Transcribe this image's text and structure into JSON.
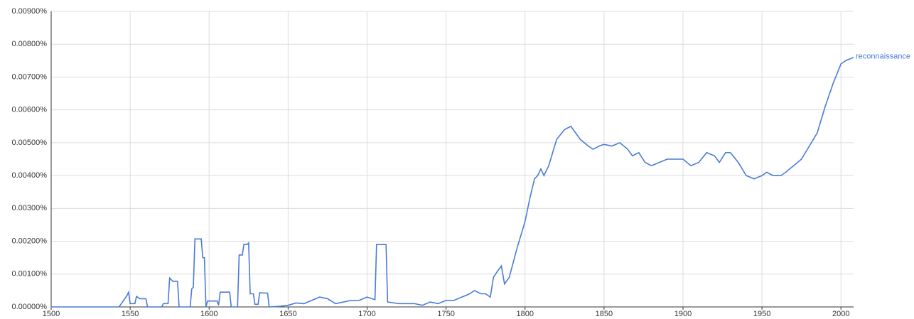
{
  "chart_data": {
    "type": "line",
    "x": [
      1500,
      1543,
      1548,
      1549,
      1550,
      1553,
      1554,
      1556,
      1560,
      1561,
      1570,
      1571,
      1574,
      1575,
      1577,
      1580,
      1581,
      1588,
      1589,
      1590,
      1591,
      1595,
      1596,
      1597,
      1598,
      1599,
      1605,
      1606,
      1607,
      1613,
      1614,
      1618,
      1619,
      1621,
      1622,
      1624,
      1625,
      1626,
      1628,
      1629,
      1631,
      1632,
      1637,
      1638,
      1645,
      1650,
      1655,
      1660,
      1665,
      1670,
      1675,
      1680,
      1685,
      1690,
      1695,
      1700,
      1705,
      1706,
      1712,
      1713,
      1720,
      1730,
      1735,
      1740,
      1745,
      1750,
      1755,
      1760,
      1765,
      1768,
      1772,
      1775,
      1778,
      1780,
      1782,
      1785,
      1787,
      1790,
      1795,
      1800,
      1803,
      1806,
      1808,
      1810,
      1812,
      1815,
      1820,
      1825,
      1829,
      1832,
      1835,
      1840,
      1843,
      1847,
      1850,
      1855,
      1860,
      1865,
      1868,
      1872,
      1876,
      1880,
      1885,
      1890,
      1895,
      1900,
      1905,
      1910,
      1915,
      1920,
      1923,
      1927,
      1930,
      1935,
      1940,
      1945,
      1950,
      1953,
      1957,
      1962,
      1965,
      1970,
      1975,
      1980,
      1985,
      1990,
      1995,
      2000,
      2003,
      2008
    ],
    "series": [
      {
        "name": "reconnaissance",
        "color": "#4a7bd6",
        "values": [
          0,
          0,
          0.00035,
          0.00045,
          0.0001,
          0.0001,
          0.00032,
          0.00025,
          0.00025,
          0,
          0,
          0.0001,
          0.0001,
          0.00088,
          0.00078,
          0.00078,
          0,
          0,
          0.00055,
          0.0006,
          0.00207,
          0.00207,
          0.0015,
          0.0015,
          0,
          0.00018,
          0.00018,
          5e-05,
          0.00045,
          0.00045,
          0,
          0,
          0.00158,
          0.00158,
          0.0019,
          0.0019,
          0.00195,
          0.0004,
          0.0004,
          8e-05,
          8e-05,
          0.00043,
          0.00042,
          0,
          2e-05,
          5e-05,
          0.00012,
          0.0001,
          0.0002,
          0.0003,
          0.00025,
          0.0001,
          0.00015,
          0.0002,
          0.0002,
          0.0003,
          0.00022,
          0.0019,
          0.0019,
          0.00015,
          0.0001,
          0.0001,
          5e-05,
          0.00015,
          0.0001,
          0.0002,
          0.0002,
          0.0003,
          0.0004,
          0.0005,
          0.0004,
          0.0004,
          0.0003,
          0.0009,
          0.00105,
          0.00125,
          0.0007,
          0.0009,
          0.0018,
          0.0026,
          0.0033,
          0.0039,
          0.004,
          0.0042,
          0.004,
          0.0043,
          0.0051,
          0.0054,
          0.0055,
          0.0053,
          0.0051,
          0.0049,
          0.0048,
          0.0049,
          0.00495,
          0.0049,
          0.005,
          0.0048,
          0.0046,
          0.0047,
          0.0044,
          0.0043,
          0.0044,
          0.0045,
          0.0045,
          0.0045,
          0.0043,
          0.0044,
          0.0047,
          0.0046,
          0.0044,
          0.0047,
          0.0047,
          0.0044,
          0.004,
          0.0039,
          0.004,
          0.0041,
          0.004,
          0.004,
          0.0041,
          0.0043,
          0.0045,
          0.0049,
          0.0053,
          0.0061,
          0.0068,
          0.0074,
          0.0075,
          0.0076
        ]
      }
    ],
    "xlim": [
      1500,
      2008
    ],
    "xticks": [
      1500,
      1550,
      1600,
      1650,
      1700,
      1750,
      1800,
      1850,
      1900,
      1950,
      2000
    ],
    "ylim": [
      0,
      0.009
    ],
    "yticks": [
      {
        "value": 0,
        "label": "0.00000%"
      },
      {
        "value": 0.001,
        "label": "0.00100%"
      },
      {
        "value": 0.002,
        "label": "0.00200%"
      },
      {
        "value": 0.003,
        "label": "0.00300%"
      },
      {
        "value": 0.004,
        "label": "0.00400%"
      },
      {
        "value": 0.005,
        "label": "0.00500%"
      },
      {
        "value": 0.006,
        "label": "0.00600%"
      },
      {
        "value": 0.007,
        "label": "0.00700%"
      },
      {
        "value": 0.008,
        "label": "0.00800%"
      },
      {
        "value": 0.009,
        "label": "0.00900%"
      }
    ],
    "grid": true
  }
}
